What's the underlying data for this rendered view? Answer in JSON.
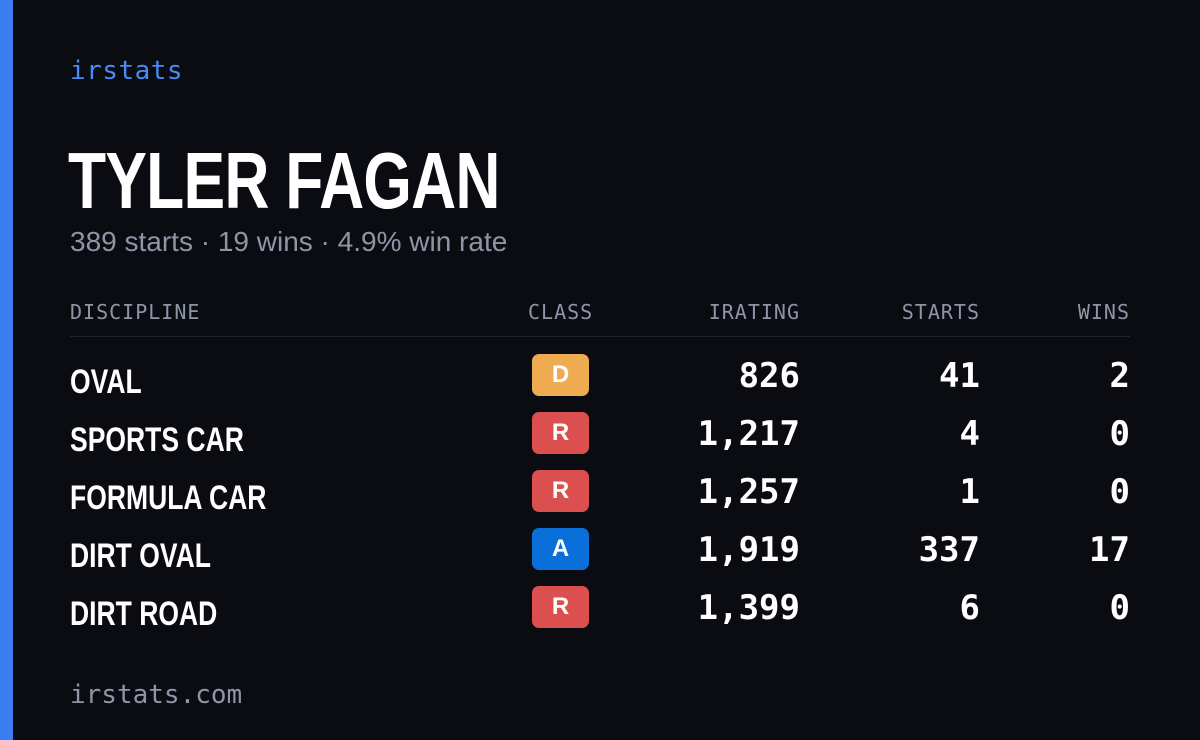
{
  "brand": "irstats",
  "driver": {
    "name": "TYLER FAGAN",
    "summary": "389 starts · 19 wins · 4.9% win rate"
  },
  "table": {
    "headers": {
      "discipline": "DISCIPLINE",
      "class": "CLASS",
      "irating": "IRATING",
      "starts": "STARTS",
      "wins": "WINS"
    },
    "rows": [
      {
        "discipline": "OVAL",
        "class": "D",
        "class_color": "#eeab4f",
        "irating": "826",
        "starts": "41",
        "wins": "2"
      },
      {
        "discipline": "SPORTS CAR",
        "class": "R",
        "class_color": "#db4f4f",
        "irating": "1,217",
        "starts": "4",
        "wins": "0"
      },
      {
        "discipline": "FORMULA CAR",
        "class": "R",
        "class_color": "#db4f4f",
        "irating": "1,257",
        "starts": "1",
        "wins": "0"
      },
      {
        "discipline": "DIRT OVAL",
        "class": "A",
        "class_color": "#0b6fd9",
        "irating": "1,919",
        "starts": "337",
        "wins": "17"
      },
      {
        "discipline": "DIRT ROAD",
        "class": "R",
        "class_color": "#db4f4f",
        "irating": "1,399",
        "starts": "6",
        "wins": "0"
      }
    ]
  },
  "footer": "irstats.com",
  "colors": {
    "accent": "#3b7cf0",
    "background": "#0a0c12"
  }
}
